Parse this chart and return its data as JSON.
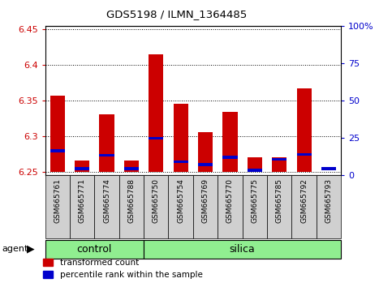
{
  "title": "GDS5198 / ILMN_1364485",
  "samples": [
    "GSM665761",
    "GSM665771",
    "GSM665774",
    "GSM665788",
    "GSM665750",
    "GSM665754",
    "GSM665769",
    "GSM665770",
    "GSM665775",
    "GSM665785",
    "GSM665792",
    "GSM665793"
  ],
  "groups": [
    "control",
    "control",
    "control",
    "control",
    "silica",
    "silica",
    "silica",
    "silica",
    "silica",
    "silica",
    "silica",
    "silica"
  ],
  "red_values": [
    6.357,
    6.265,
    6.33,
    6.265,
    6.415,
    6.345,
    6.305,
    6.334,
    6.27,
    6.27,
    6.367,
    6.25
  ],
  "blue_values": [
    6.277,
    6.252,
    6.271,
    6.252,
    6.295,
    6.262,
    6.258,
    6.268,
    6.25,
    6.265,
    6.272,
    6.252
  ],
  "ylim_left": [
    6.245,
    6.455
  ],
  "ylim_right": [
    0,
    100
  ],
  "yticks_left": [
    6.25,
    6.3,
    6.35,
    6.4,
    6.45
  ],
  "yticks_right": [
    0,
    25,
    50,
    75,
    100
  ],
  "ytick_labels_left": [
    "6.25",
    "6.3",
    "6.35",
    "6.4",
    "6.45"
  ],
  "ytick_labels_right": [
    "0",
    "25",
    "50",
    "75",
    "100%"
  ],
  "bar_bottom": 6.25,
  "bar_width": 0.6,
  "blue_bar_height": 0.004,
  "red_color": "#CC0000",
  "blue_color": "#0000CC",
  "green_color": "#90EE90",
  "gray_color": "#D0D0D0",
  "legend_red": "transformed count",
  "legend_blue": "percentile rank within the sample",
  "n_control": 4,
  "n_silica": 8,
  "figsize": [
    4.83,
    3.54
  ],
  "dpi": 100
}
